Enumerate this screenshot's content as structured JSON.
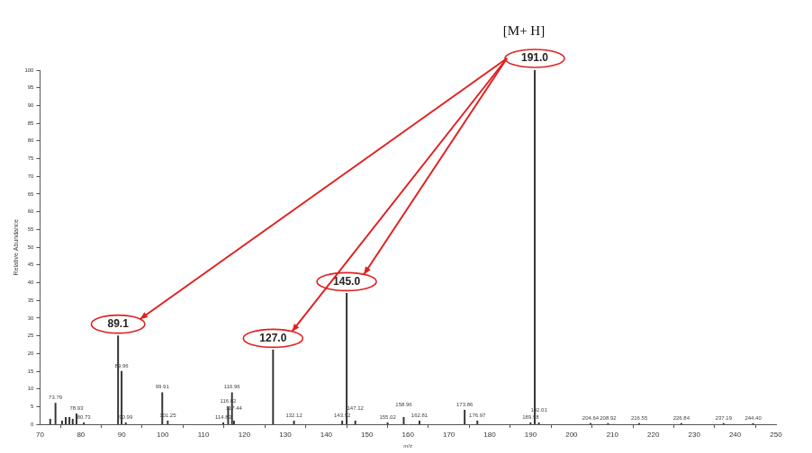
{
  "chart_data": {
    "type": "bar",
    "x_label": "m/z",
    "y_label": "Relative Abundance",
    "x": [
      72.5,
      73.79,
      75.4,
      76.3,
      77.2,
      78.0,
      78.93,
      80.73,
      89.1,
      89.96,
      90.99,
      99.91,
      101.25,
      114.83,
      116.02,
      116.96,
      117.44,
      127.0,
      132.12,
      143.92,
      145.0,
      147.12,
      155.02,
      158.96,
      162.81,
      173.86,
      176.97,
      189.98,
      191.0,
      192.01,
      204.64,
      208.92,
      216.55,
      226.84,
      237.19,
      244.4
    ],
    "values": [
      1.5,
      6,
      1,
      2,
      2,
      1.5,
      3,
      0.5,
      25,
      15,
      0.5,
      9,
      1,
      0.5,
      5,
      9,
      1,
      21,
      1,
      1,
      37,
      1,
      0.5,
      2,
      1,
      4,
      1,
      0.5,
      100,
      0.5,
      0.3,
      0.3,
      0.3,
      0.3,
      0.3,
      0.3
    ],
    "peak_labels": [
      null,
      "73.79",
      null,
      null,
      null,
      null,
      "78.93",
      "80.73",
      "89.1",
      "89.96",
      "90.99",
      "99.91",
      "101.25",
      "114.83",
      "116.02",
      "116.96",
      "117.44",
      "127.0",
      "132.12",
      "143.92",
      "145.0",
      "147.12",
      "155.02",
      "158.96",
      "162.81",
      "173.86",
      "176.97",
      "189.98",
      "191.0",
      "192.01",
      "204.64",
      "208.92",
      "216.55",
      "226.84",
      "237.19",
      "244.40"
    ],
    "color": "#333333",
    "callout": {
      "text": "[M+ H]",
      "from": 191.0,
      "to": [
        89.1,
        127.0,
        145.0
      ],
      "color": "#e02020"
    },
    "xlim": [
      70,
      250
    ],
    "xticks": [
      70,
      80,
      90,
      100,
      110,
      120,
      130,
      140,
      150,
      160,
      170,
      180,
      190,
      200,
      210,
      220,
      230,
      240,
      250
    ],
    "ylim": [
      0,
      100
    ],
    "yticks": [
      0,
      5,
      10,
      15,
      20,
      25,
      30,
      35,
      40,
      45,
      50,
      55,
      60,
      65,
      70,
      75,
      80,
      85,
      90,
      95,
      100
    ],
    "grid": false
  }
}
